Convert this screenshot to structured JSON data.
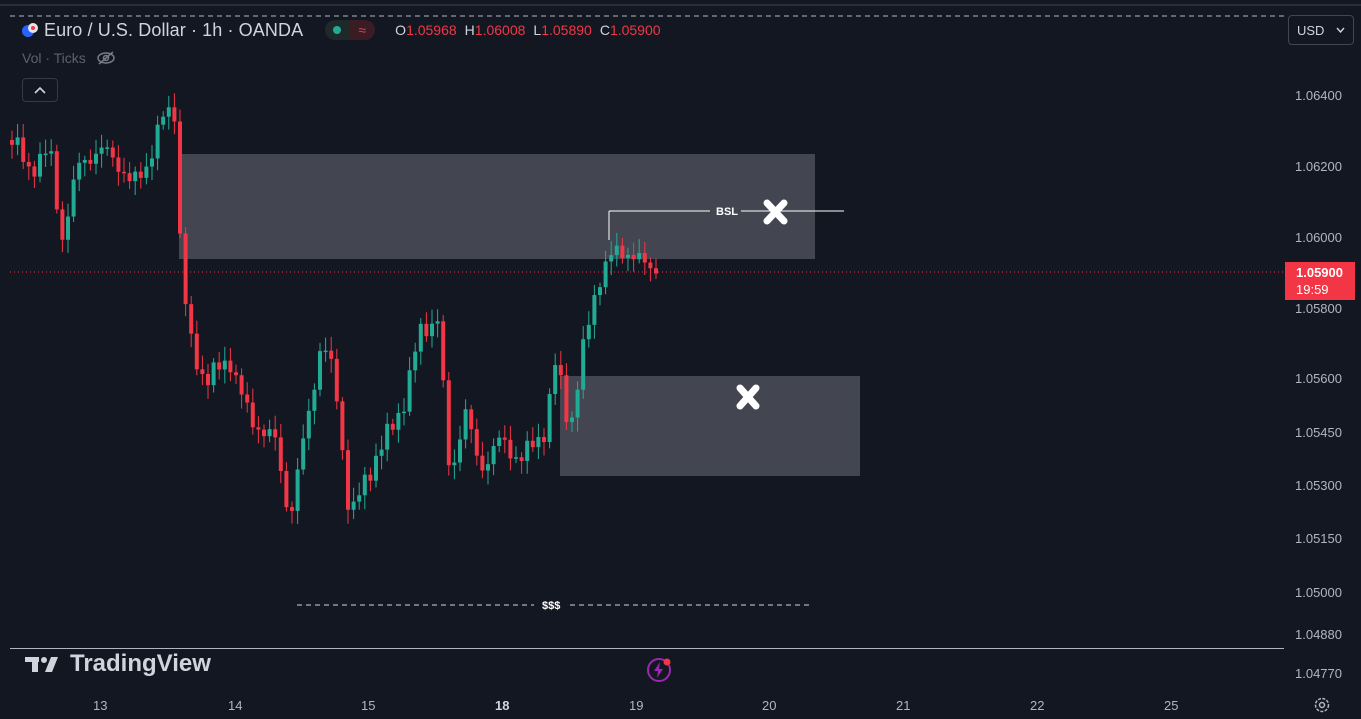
{
  "header": {
    "title": "Euro / U.S. Dollar · 1h · OANDA",
    "ohlc": [
      {
        "label": "O",
        "value": "1.05968"
      },
      {
        "label": "H",
        "value": "1.06008"
      },
      {
        "label": "L",
        "value": "1.05890"
      },
      {
        "label": "C",
        "value": "1.05900"
      }
    ],
    "pill_wave": "≈"
  },
  "volume": {
    "label": "Vol · Ticks"
  },
  "currency": {
    "label": "USD"
  },
  "price_axis": [
    "1.06400",
    "1.06200",
    "1.06000",
    "1.05800",
    "1.05600",
    "1.05450",
    "1.05300",
    "1.05150",
    "1.05000",
    "1.04880",
    "1.04770"
  ],
  "last_price": {
    "value": "1.05900",
    "countdown": "19:59"
  },
  "time_axis": [
    "13",
    "14",
    "15",
    "18",
    "19",
    "20",
    "21",
    "22",
    "25"
  ],
  "annotations": {
    "bsl": "BSL",
    "liquidity": "$$$"
  },
  "logo": {
    "text": "TradingView"
  },
  "colors": {
    "background": "#131722",
    "up": "#22ab94",
    "down": "#f23645",
    "zone": "#434651"
  }
}
